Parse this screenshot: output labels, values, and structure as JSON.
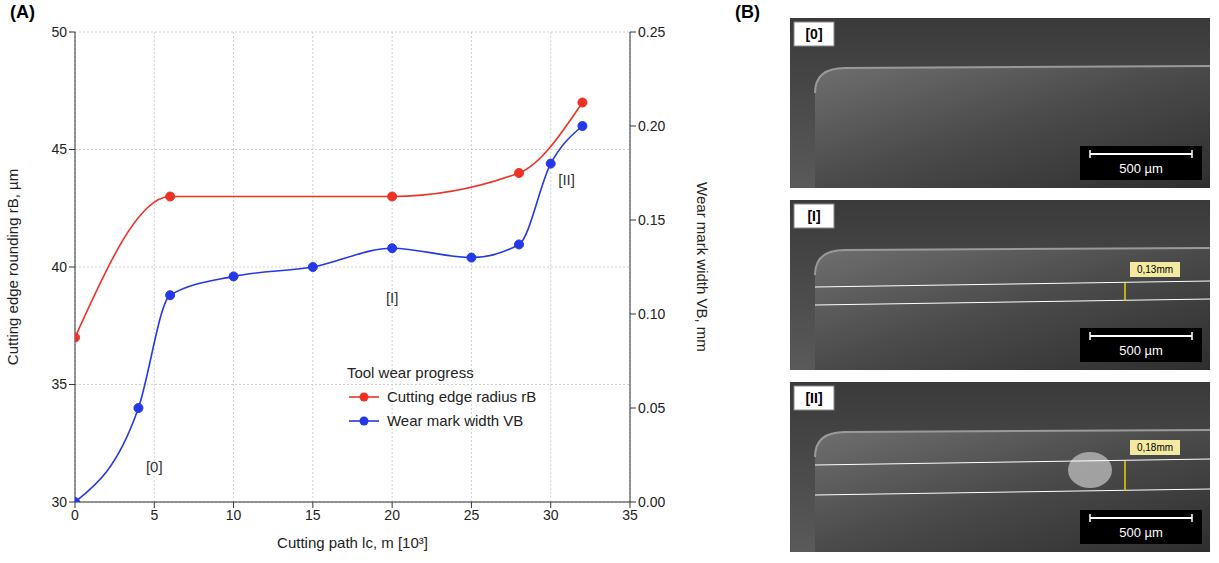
{
  "chart_data": {
    "type": "line",
    "panel_label": "(A)",
    "xlabel": "Cutting path lc, m [10³]",
    "ylabel": "Cutting edge rounding rB, µm",
    "y2label": "Wear mark width VB, mm",
    "xlim": [
      0,
      35
    ],
    "xticks": [
      0,
      5,
      10,
      15,
      20,
      25,
      30,
      35
    ],
    "ylim": [
      30,
      50
    ],
    "yticks": [
      30,
      35,
      40,
      45,
      50
    ],
    "y2lim": [
      0,
      0.25
    ],
    "y2ticks": [
      {
        "value": 0,
        "label": "0.00"
      },
      {
        "value": 0.05,
        "label": "0.05"
      },
      {
        "value": 0.1,
        "label": "0.10"
      },
      {
        "value": 0.15,
        "label": "0.15"
      },
      {
        "value": 0.2,
        "label": "0.20"
      },
      {
        "value": 0.25,
        "label": "0.25"
      }
    ],
    "grid": true,
    "legend": "lower right",
    "legend_title": "Tool wear progress",
    "series": [
      {
        "name": "Cutting edge radius rB",
        "color": "#ee3124",
        "marker": "circle",
        "line_style": "solid",
        "x": [
          0,
          6,
          20,
          28,
          32
        ],
        "values": [
          37,
          43,
          43,
          44,
          47
        ]
      },
      {
        "name": "Wear mark width VB",
        "color": "#2438e8",
        "marker": "circle",
        "line_style": "solid",
        "axis": "y2",
        "x": [
          0,
          4,
          6,
          10,
          15,
          20,
          25,
          28,
          30,
          32
        ],
        "values": [
          0,
          0.05,
          0.11,
          0.12,
          0.125,
          0.135,
          0.13,
          0.137,
          0.18,
          0.2
        ]
      }
    ],
    "annotations": [
      {
        "text": "[0]",
        "x": 5,
        "y": 31.5
      },
      {
        "text": "[I]",
        "x": 20,
        "y": 38.7
      },
      {
        "text": "[II]",
        "x": 31,
        "y": 43.7
      }
    ]
  },
  "image_panel": {
    "panel_label": "(B)",
    "images": [
      {
        "label": "[0]",
        "scale_bar": "500 µm"
      },
      {
        "label": "[I]",
        "scale_bar": "500 µm",
        "measurement": "0,13mm"
      },
      {
        "label": "[II]",
        "scale_bar": "500 µm",
        "measurement": "0,18mm"
      }
    ]
  }
}
